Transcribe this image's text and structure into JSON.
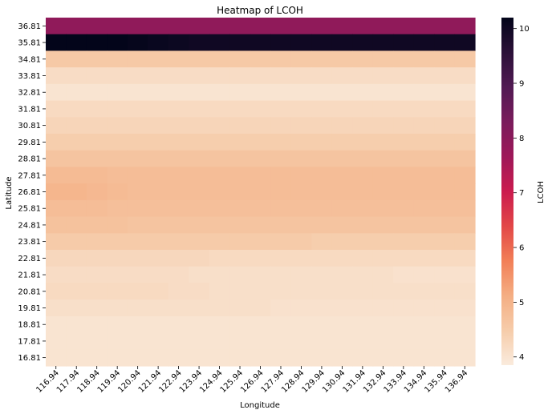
{
  "chart_data": {
    "type": "heatmap",
    "title": "Heatmap of LCOH",
    "xlabel": "Longitude",
    "ylabel": "Latitude",
    "colorbar_label": "LCOH",
    "colormap": "rocket_r",
    "x": [
      "116.94",
      "117.94",
      "118.94",
      "119.94",
      "120.94",
      "121.94",
      "122.94",
      "123.94",
      "124.94",
      "125.94",
      "126.94",
      "127.94",
      "128.94",
      "129.94",
      "130.94",
      "131.94",
      "132.94",
      "133.94",
      "134.94",
      "135.94",
      "136.94"
    ],
    "y": [
      "36.81",
      "35.81",
      "34.81",
      "33.81",
      "32.81",
      "31.81",
      "30.81",
      "29.81",
      "28.81",
      "27.81",
      "26.81",
      "25.81",
      "24.81",
      "23.81",
      "22.81",
      "21.81",
      "20.81",
      "19.81",
      "18.81",
      "17.81",
      "16.81"
    ],
    "zlim": [
      3.85,
      10.2
    ],
    "colorbar_ticks": [
      4,
      5,
      6,
      7,
      8,
      9,
      10
    ],
    "values": [
      [
        7.9,
        7.9,
        7.9,
        7.9,
        7.9,
        7.9,
        7.9,
        7.9,
        7.9,
        7.9,
        7.9,
        7.9,
        7.9,
        7.9,
        7.9,
        7.9,
        7.9,
        7.9,
        7.9,
        7.9,
        7.9
      ],
      [
        10.2,
        10.2,
        10.2,
        10.2,
        10.15,
        10.1,
        10.05,
        10.0,
        10.0,
        10.0,
        10.0,
        10.0,
        10.0,
        10.0,
        10.0,
        10.0,
        10.0,
        10.0,
        10.0,
        10.0,
        10.0
      ],
      [
        4.55,
        4.55,
        4.55,
        4.55,
        4.55,
        4.55,
        4.55,
        4.55,
        4.55,
        4.55,
        4.55,
        4.55,
        4.55,
        4.55,
        4.55,
        4.55,
        4.55,
        4.55,
        4.55,
        4.55,
        4.55
      ],
      [
        4.15,
        4.15,
        4.15,
        4.15,
        4.15,
        4.15,
        4.15,
        4.15,
        4.15,
        4.15,
        4.15,
        4.15,
        4.15,
        4.15,
        4.15,
        4.15,
        4.15,
        4.15,
        4.15,
        4.15,
        4.15
      ],
      [
        4.0,
        4.0,
        4.0,
        4.0,
        4.0,
        4.0,
        4.0,
        4.0,
        4.0,
        4.0,
        4.0,
        4.0,
        4.0,
        4.0,
        4.0,
        4.0,
        4.0,
        4.0,
        4.0,
        4.0,
        4.0
      ],
      [
        4.2,
        4.2,
        4.2,
        4.2,
        4.2,
        4.2,
        4.2,
        4.2,
        4.2,
        4.2,
        4.2,
        4.2,
        4.2,
        4.2,
        4.2,
        4.2,
        4.2,
        4.2,
        4.2,
        4.2,
        4.2
      ],
      [
        4.3,
        4.3,
        4.3,
        4.3,
        4.3,
        4.3,
        4.3,
        4.3,
        4.3,
        4.3,
        4.3,
        4.3,
        4.3,
        4.3,
        4.3,
        4.3,
        4.3,
        4.3,
        4.3,
        4.3,
        4.3
      ],
      [
        4.45,
        4.45,
        4.45,
        4.45,
        4.45,
        4.45,
        4.45,
        4.45,
        4.45,
        4.45,
        4.45,
        4.45,
        4.45,
        4.45,
        4.45,
        4.45,
        4.45,
        4.45,
        4.45,
        4.45,
        4.45
      ],
      [
        4.65,
        4.65,
        4.65,
        4.65,
        4.65,
        4.65,
        4.65,
        4.65,
        4.65,
        4.65,
        4.65,
        4.65,
        4.65,
        4.65,
        4.65,
        4.65,
        4.65,
        4.65,
        4.65,
        4.65,
        4.65
      ],
      [
        4.85,
        4.85,
        4.85,
        4.8,
        4.8,
        4.8,
        4.8,
        4.8,
        4.8,
        4.8,
        4.8,
        4.8,
        4.8,
        4.8,
        4.8,
        4.8,
        4.8,
        4.8,
        4.8,
        4.8,
        4.8
      ],
      [
        4.95,
        4.95,
        4.9,
        4.85,
        4.8,
        4.8,
        4.8,
        4.8,
        4.8,
        4.8,
        4.8,
        4.8,
        4.8,
        4.8,
        4.8,
        4.8,
        4.8,
        4.8,
        4.8,
        4.8,
        4.8
      ],
      [
        4.8,
        4.8,
        4.8,
        4.75,
        4.75,
        4.75,
        4.75,
        4.75,
        4.75,
        4.75,
        4.75,
        4.75,
        4.75,
        4.75,
        4.75,
        4.75,
        4.75,
        4.75,
        4.75,
        4.75,
        4.75
      ],
      [
        4.7,
        4.7,
        4.7,
        4.7,
        4.65,
        4.65,
        4.65,
        4.65,
        4.65,
        4.65,
        4.65,
        4.65,
        4.65,
        4.65,
        4.65,
        4.65,
        4.65,
        4.65,
        4.65,
        4.65,
        4.65
      ],
      [
        4.5,
        4.5,
        4.5,
        4.5,
        4.5,
        4.5,
        4.5,
        4.5,
        4.5,
        4.5,
        4.5,
        4.5,
        4.5,
        4.45,
        4.45,
        4.45,
        4.45,
        4.45,
        4.45,
        4.45,
        4.45
      ],
      [
        4.25,
        4.25,
        4.25,
        4.25,
        4.25,
        4.25,
        4.25,
        4.25,
        4.2,
        4.2,
        4.2,
        4.2,
        4.2,
        4.2,
        4.2,
        4.2,
        4.2,
        4.2,
        4.2,
        4.2,
        4.2
      ],
      [
        4.15,
        4.15,
        4.15,
        4.15,
        4.15,
        4.15,
        4.15,
        4.1,
        4.1,
        4.1,
        4.1,
        4.1,
        4.1,
        4.1,
        4.1,
        4.1,
        4.1,
        4.05,
        4.05,
        4.05,
        4.05
      ],
      [
        4.2,
        4.2,
        4.2,
        4.2,
        4.2,
        4.2,
        4.15,
        4.15,
        4.1,
        4.1,
        4.1,
        4.1,
        4.1,
        4.1,
        4.1,
        4.1,
        4.1,
        4.1,
        4.1,
        4.1,
        4.1
      ],
      [
        4.1,
        4.1,
        4.1,
        4.1,
        4.1,
        4.1,
        4.1,
        4.1,
        4.1,
        4.1,
        4.1,
        4.05,
        4.05,
        4.05,
        4.05,
        4.05,
        4.05,
        4.05,
        4.05,
        4.05,
        4.05
      ],
      [
        4.0,
        4.0,
        4.0,
        4.0,
        4.0,
        4.0,
        4.0,
        4.0,
        4.0,
        4.0,
        4.0,
        4.0,
        4.0,
        4.0,
        4.0,
        4.0,
        4.0,
        4.0,
        4.0,
        4.0,
        4.0
      ],
      [
        4.0,
        4.0,
        4.0,
        4.0,
        4.0,
        4.0,
        4.0,
        4.0,
        4.0,
        4.0,
        4.0,
        4.0,
        4.0,
        4.0,
        4.0,
        4.0,
        4.0,
        4.0,
        4.0,
        4.0,
        4.0
      ],
      [
        4.0,
        4.0,
        4.0,
        4.0,
        4.0,
        4.0,
        4.0,
        4.0,
        4.0,
        4.0,
        4.0,
        4.0,
        4.0,
        4.0,
        4.0,
        4.0,
        4.0,
        4.0,
        4.0,
        4.0,
        4.0
      ]
    ]
  }
}
